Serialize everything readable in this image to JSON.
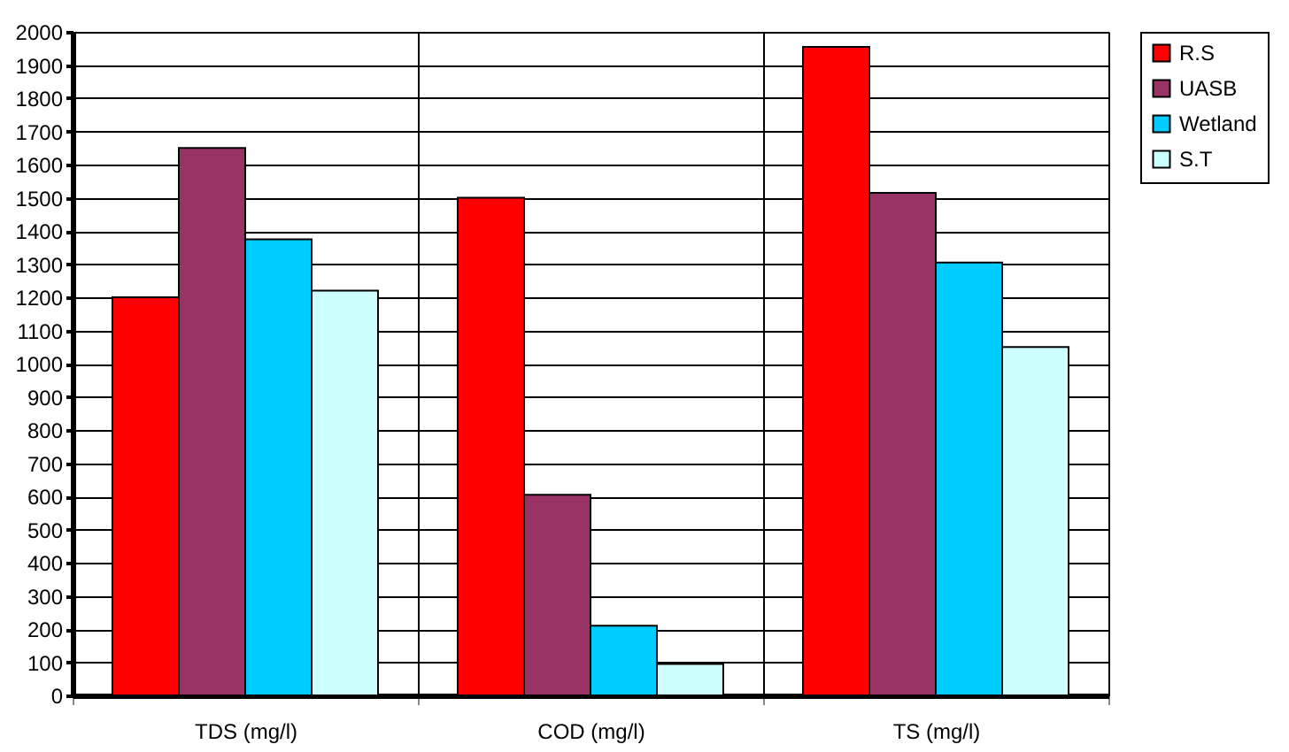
{
  "chart_data": {
    "type": "bar",
    "categories": [
      "TDS (mg/l)",
      "COD (mg/l)",
      "TS (mg/l)"
    ],
    "series": [
      {
        "name": "R.S",
        "color": "#ff0000",
        "values": [
          1200,
          1500,
          1955
        ]
      },
      {
        "name": "UASB",
        "color": "#993366",
        "values": [
          1650,
          605,
          1515
        ]
      },
      {
        "name": "Wetland",
        "color": "#00ccff",
        "values": [
          1375,
          210,
          1305
        ]
      },
      {
        "name": "S.T",
        "color": "#ccffff",
        "values": [
          1220,
          95,
          1050
        ]
      }
    ],
    "ylim": [
      0,
      2000
    ],
    "yticks": [
      0,
      100,
      200,
      300,
      400,
      500,
      600,
      700,
      800,
      900,
      1000,
      1100,
      1200,
      1300,
      1400,
      1500,
      1600,
      1700,
      1800,
      1900,
      2000
    ],
    "grid": true,
    "legend": "right"
  }
}
